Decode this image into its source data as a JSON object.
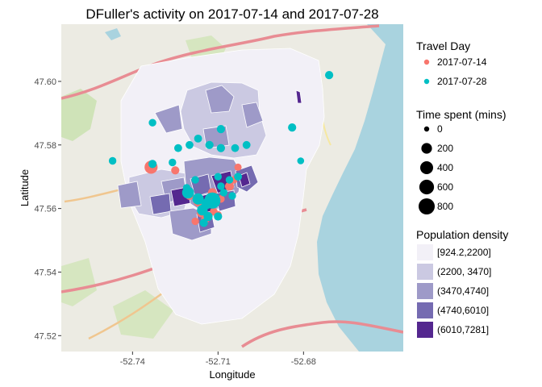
{
  "chart_data": {
    "type": "scatter",
    "title": "DFuller's activity on  2017-07-14  and  2017-07-28",
    "xlabel": "Longitude",
    "ylabel": "Latitude",
    "xlim": [
      -52.765,
      -52.645
    ],
    "ylim": [
      47.515,
      47.618
    ],
    "x_ticks": [
      {
        "value": -52.74,
        "label": "-52.74"
      },
      {
        "value": -52.71,
        "label": "-52.71"
      },
      {
        "value": -52.68,
        "label": "-52.68"
      }
    ],
    "y_ticks": [
      {
        "value": 47.6,
        "label": "47.60"
      },
      {
        "value": 47.58,
        "label": "47.58"
      },
      {
        "value": 47.56,
        "label": "47.56"
      },
      {
        "value": 47.54,
        "label": "47.54"
      },
      {
        "value": 47.52,
        "label": "47.52"
      }
    ],
    "background": "map",
    "series": [
      {
        "name": "2017-07-14",
        "color": "#F8766D",
        "points": [
          {
            "x": -52.7335,
            "y": 47.573,
            "time": 420
          },
          {
            "x": -52.725,
            "y": 47.572,
            "time": 60
          },
          {
            "x": -52.72,
            "y": 47.564,
            "time": 60
          },
          {
            "x": -52.717,
            "y": 47.562,
            "time": 80
          },
          {
            "x": -52.712,
            "y": 47.565,
            "time": 90
          },
          {
            "x": -52.706,
            "y": 47.567,
            "time": 90
          },
          {
            "x": -52.703,
            "y": 47.573,
            "time": 30
          },
          {
            "x": -52.7045,
            "y": 47.569,
            "time": 40
          },
          {
            "x": -52.7115,
            "y": 47.559,
            "time": 50
          },
          {
            "x": -52.7145,
            "y": 47.5565,
            "time": 60
          },
          {
            "x": -52.716,
            "y": 47.5585,
            "time": 60
          },
          {
            "x": -52.71,
            "y": 47.558,
            "time": 40
          },
          {
            "x": -52.718,
            "y": 47.556,
            "time": 40
          },
          {
            "x": -52.709,
            "y": 47.563,
            "time": 40
          }
        ]
      },
      {
        "name": "2017-07-28",
        "color": "#00BFC4",
        "points": [
          {
            "x": -52.671,
            "y": 47.602,
            "time": 60
          },
          {
            "x": -52.684,
            "y": 47.5855,
            "time": 60
          },
          {
            "x": -52.681,
            "y": 47.575,
            "time": 20
          },
          {
            "x": -52.7,
            "y": 47.58,
            "time": 50
          },
          {
            "x": -52.704,
            "y": 47.579,
            "time": 50
          },
          {
            "x": -52.709,
            "y": 47.585,
            "time": 60
          },
          {
            "x": -52.709,
            "y": 47.579,
            "time": 60
          },
          {
            "x": -52.713,
            "y": 47.58,
            "time": 60
          },
          {
            "x": -52.717,
            "y": 47.582,
            "time": 50
          },
          {
            "x": -52.72,
            "y": 47.58,
            "time": 50
          },
          {
            "x": -52.724,
            "y": 47.579,
            "time": 50
          },
          {
            "x": -52.726,
            "y": 47.5745,
            "time": 40
          },
          {
            "x": -52.733,
            "y": 47.587,
            "time": 40
          },
          {
            "x": -52.747,
            "y": 47.575,
            "time": 40
          },
          {
            "x": -52.733,
            "y": 47.574,
            "time": 60
          },
          {
            "x": -52.718,
            "y": 47.569,
            "time": 40
          },
          {
            "x": -52.721,
            "y": 47.5665,
            "time": 40
          },
          {
            "x": -52.7205,
            "y": 47.565,
            "time": 300
          },
          {
            "x": -52.717,
            "y": 47.563,
            "time": 250
          },
          {
            "x": -52.714,
            "y": 47.5615,
            "time": 200
          },
          {
            "x": -52.712,
            "y": 47.5625,
            "time": 800
          },
          {
            "x": -52.7155,
            "y": 47.5595,
            "time": 200
          },
          {
            "x": -52.7135,
            "y": 47.5575,
            "time": 100
          },
          {
            "x": -52.71,
            "y": 47.5575,
            "time": 60
          },
          {
            "x": -52.715,
            "y": 47.5555,
            "time": 60
          },
          {
            "x": -52.706,
            "y": 47.569,
            "time": 40
          },
          {
            "x": -52.703,
            "y": 47.57,
            "time": 50
          },
          {
            "x": -52.708,
            "y": 47.565,
            "time": 40
          },
          {
            "x": -52.709,
            "y": 47.567,
            "time": 40
          },
          {
            "x": -52.705,
            "y": 47.564,
            "time": 40
          },
          {
            "x": -52.71,
            "y": 47.57,
            "time": 40
          }
        ]
      }
    ],
    "legends": {
      "color": {
        "title": "Travel Day",
        "entries": [
          {
            "label": "2017-07-14",
            "color": "#F8766D"
          },
          {
            "label": "2017-07-28",
            "color": "#00BFC4"
          }
        ]
      },
      "size": {
        "title": "Time spent (mins)",
        "entries": [
          {
            "label": "0",
            "value": 0
          },
          {
            "label": "200",
            "value": 200
          },
          {
            "label": "400",
            "value": 400
          },
          {
            "label": "600",
            "value": 600
          },
          {
            "label": "800",
            "value": 800
          }
        ]
      },
      "fill": {
        "title": "Population density",
        "entries": [
          {
            "label": "[924.2,2200]",
            "color": "#F2F0F7"
          },
          {
            "label": "(2200, 3470]",
            "color": "#CBC9E2"
          },
          {
            "label": "(3470,4740]",
            "color": "#9E9AC8"
          },
          {
            "label": "(4740,6010]",
            "color": "#756BB1"
          },
          {
            "label": "(6010,7281]",
            "color": "#54278F"
          }
        ]
      }
    },
    "legend_position": "right",
    "grid": false
  }
}
